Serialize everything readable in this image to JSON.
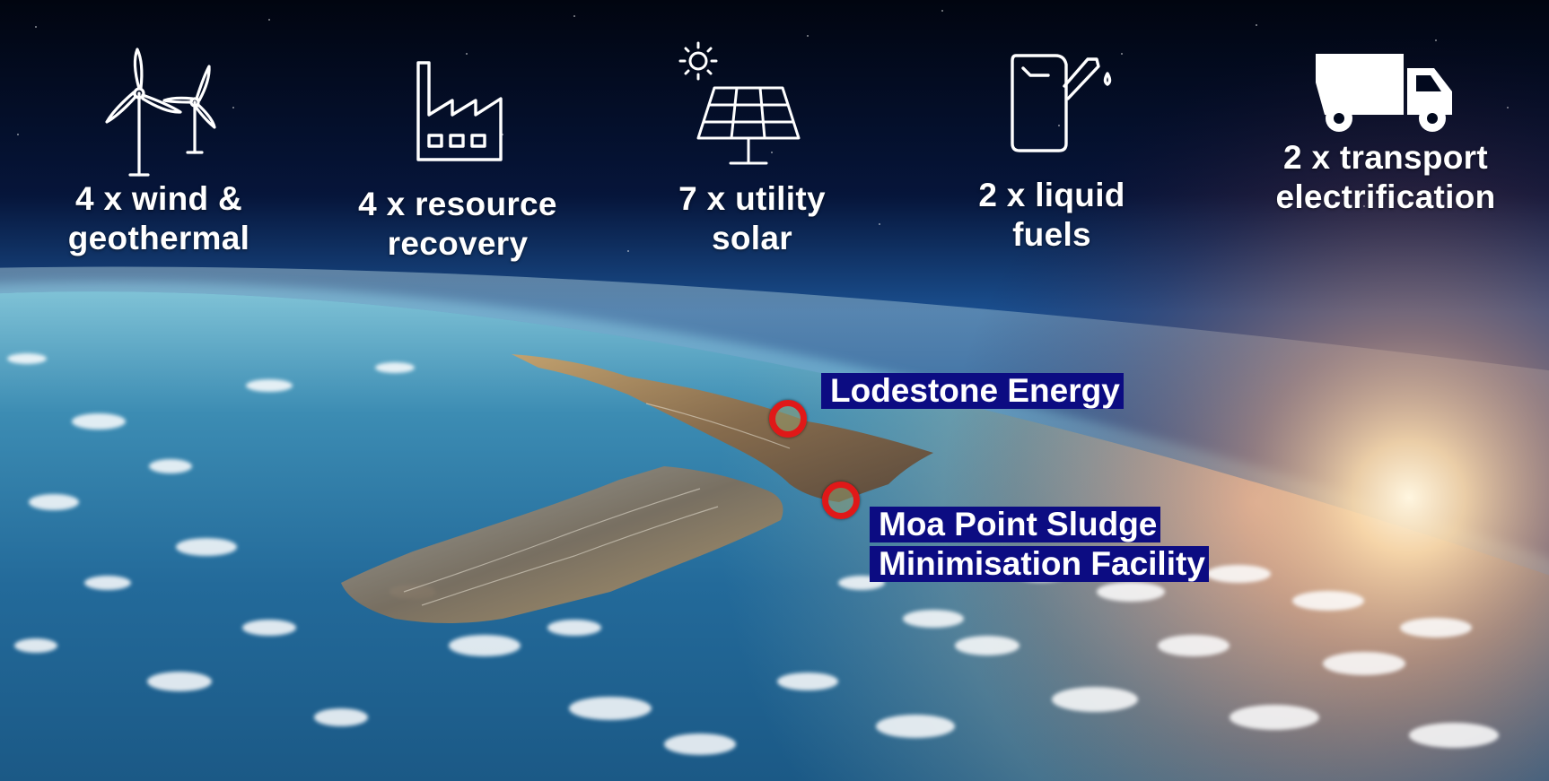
{
  "categories": [
    {
      "icon": "wind-turbine-icon",
      "line1": "4 x wind &",
      "line2": "geothermal"
    },
    {
      "icon": "factory-icon",
      "line1": "4 x resource",
      "line2": "recovery"
    },
    {
      "icon": "solar-panel-icon",
      "line1": "7 x utility",
      "line2": "solar"
    },
    {
      "icon": "fuel-can-icon",
      "line1": "2 x liquid",
      "line2": "fuels"
    },
    {
      "icon": "truck-icon",
      "line1": "2 x transport",
      "line2": "electrification"
    }
  ],
  "locations": [
    {
      "name": "Lodestone Energy"
    },
    {
      "line1": "Moa Point Sludge",
      "line2": "Minimisation Facility"
    }
  ],
  "colors": {
    "space": "#02091e",
    "ocean": "#2f7fa8",
    "callout_bg": "#0c0c82",
    "pin": "#e01818",
    "text": "#ffffff"
  }
}
